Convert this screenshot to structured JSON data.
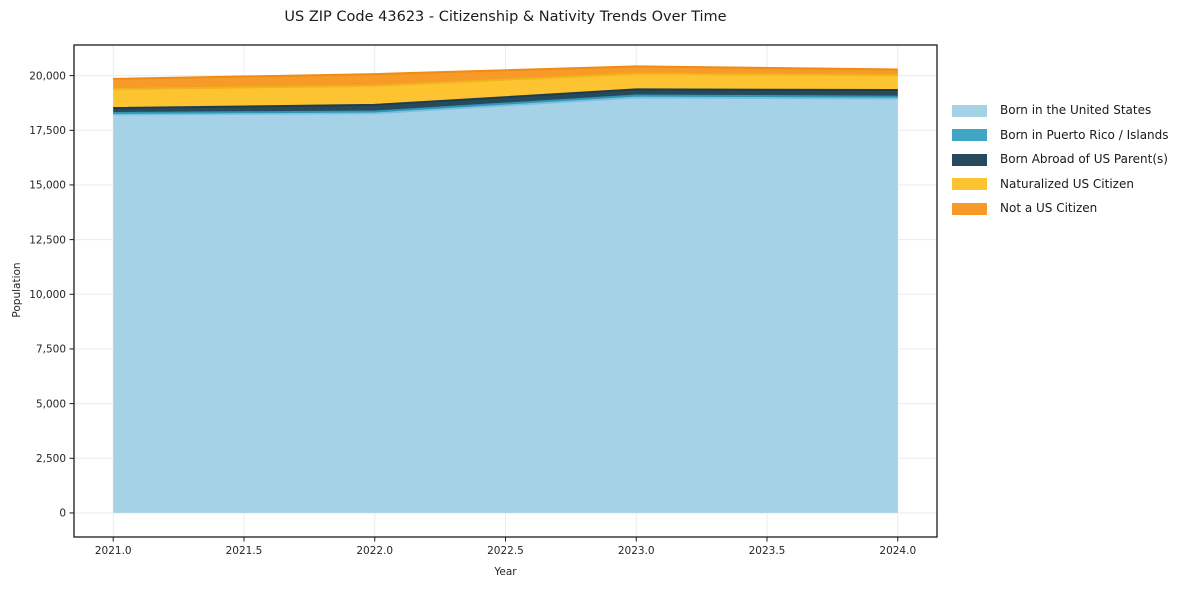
{
  "chart_data": {
    "type": "area",
    "stacked": true,
    "title": "US ZIP Code 43623 - Citizenship & Nativity Trends Over Time",
    "xlabel": "Year",
    "ylabel": "Population",
    "x": [
      2021,
      2022,
      2023,
      2024
    ],
    "series": [
      {
        "name": "Born in the United States",
        "fill": "#a6d2e7",
        "edge": "#7cc0de",
        "values": [
          18220,
          18280,
          19000,
          18950
        ]
      },
      {
        "name": "Born in Puerto Rico / Islands",
        "fill": "#3fa6c5",
        "edge": "#2e96b6",
        "values": [
          70,
          80,
          90,
          90
        ]
      },
      {
        "name": "Born Abroad of US Parent(s)",
        "fill": "#26495c",
        "edge": "#1d3d4f",
        "values": [
          230,
          300,
          280,
          300
        ]
      },
      {
        "name": "Naturalized US Citizen",
        "fill": "#fdc330",
        "edge": "#f0b318",
        "values": [
          870,
          880,
          720,
          690
        ]
      },
      {
        "name": "Not a US Citizen",
        "fill": "#f79a28",
        "edge": "#ee8c13",
        "values": [
          460,
          530,
          330,
          250
        ]
      }
    ],
    "yticks": [
      0,
      2500,
      5000,
      7500,
      10000,
      12500,
      15000,
      17500,
      20000
    ],
    "xticks": [
      2021.0,
      2021.5,
      2022.0,
      2022.5,
      2023.0,
      2023.5,
      2024.0
    ],
    "xlim": [
      2020.85,
      2024.15
    ],
    "ylim": [
      -1100,
      21400
    ],
    "grid": true,
    "legend_position": "right-outside",
    "colors": {
      "grid": "#ececec",
      "spine": "#1a1a1a",
      "tick": "#1a1a1a",
      "text": "#262626",
      "background": "#ffffff"
    }
  }
}
